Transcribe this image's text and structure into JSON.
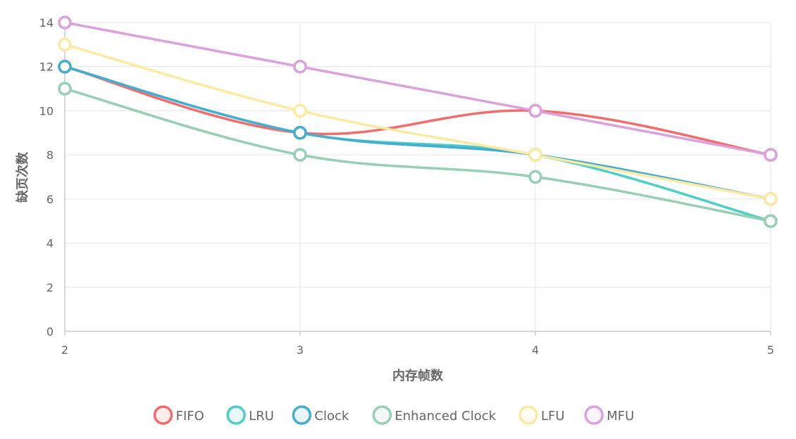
{
  "chart_data": {
    "type": "line",
    "title": "",
    "xlabel": "内存帧数",
    "ylabel": "缺页次数",
    "x": [
      2,
      3,
      4,
      5
    ],
    "ylim": [
      0,
      14
    ],
    "yticks": [
      0,
      2,
      4,
      6,
      8,
      10,
      12,
      14
    ],
    "grid": true,
    "legend_position": "bottom",
    "smooth": true,
    "series": [
      {
        "name": "FIFO",
        "values": [
          12,
          9,
          10,
          8
        ],
        "color": "#f26c6c"
      },
      {
        "name": "LRU",
        "values": [
          12,
          9,
          8,
          5
        ],
        "color": "#4dcfc6"
      },
      {
        "name": "Clock",
        "values": [
          12,
          9,
          8,
          6
        ],
        "color": "#45adcf"
      },
      {
        "name": "Enhanced Clock",
        "values": [
          11,
          8,
          7,
          5
        ],
        "color": "#96d0b3"
      },
      {
        "name": "LFU",
        "values": [
          13,
          10,
          8,
          6
        ],
        "color": "#fde9a0"
      },
      {
        "name": "MFU",
        "values": [
          14,
          12,
          10,
          8
        ],
        "color": "#dca1dd"
      }
    ]
  }
}
